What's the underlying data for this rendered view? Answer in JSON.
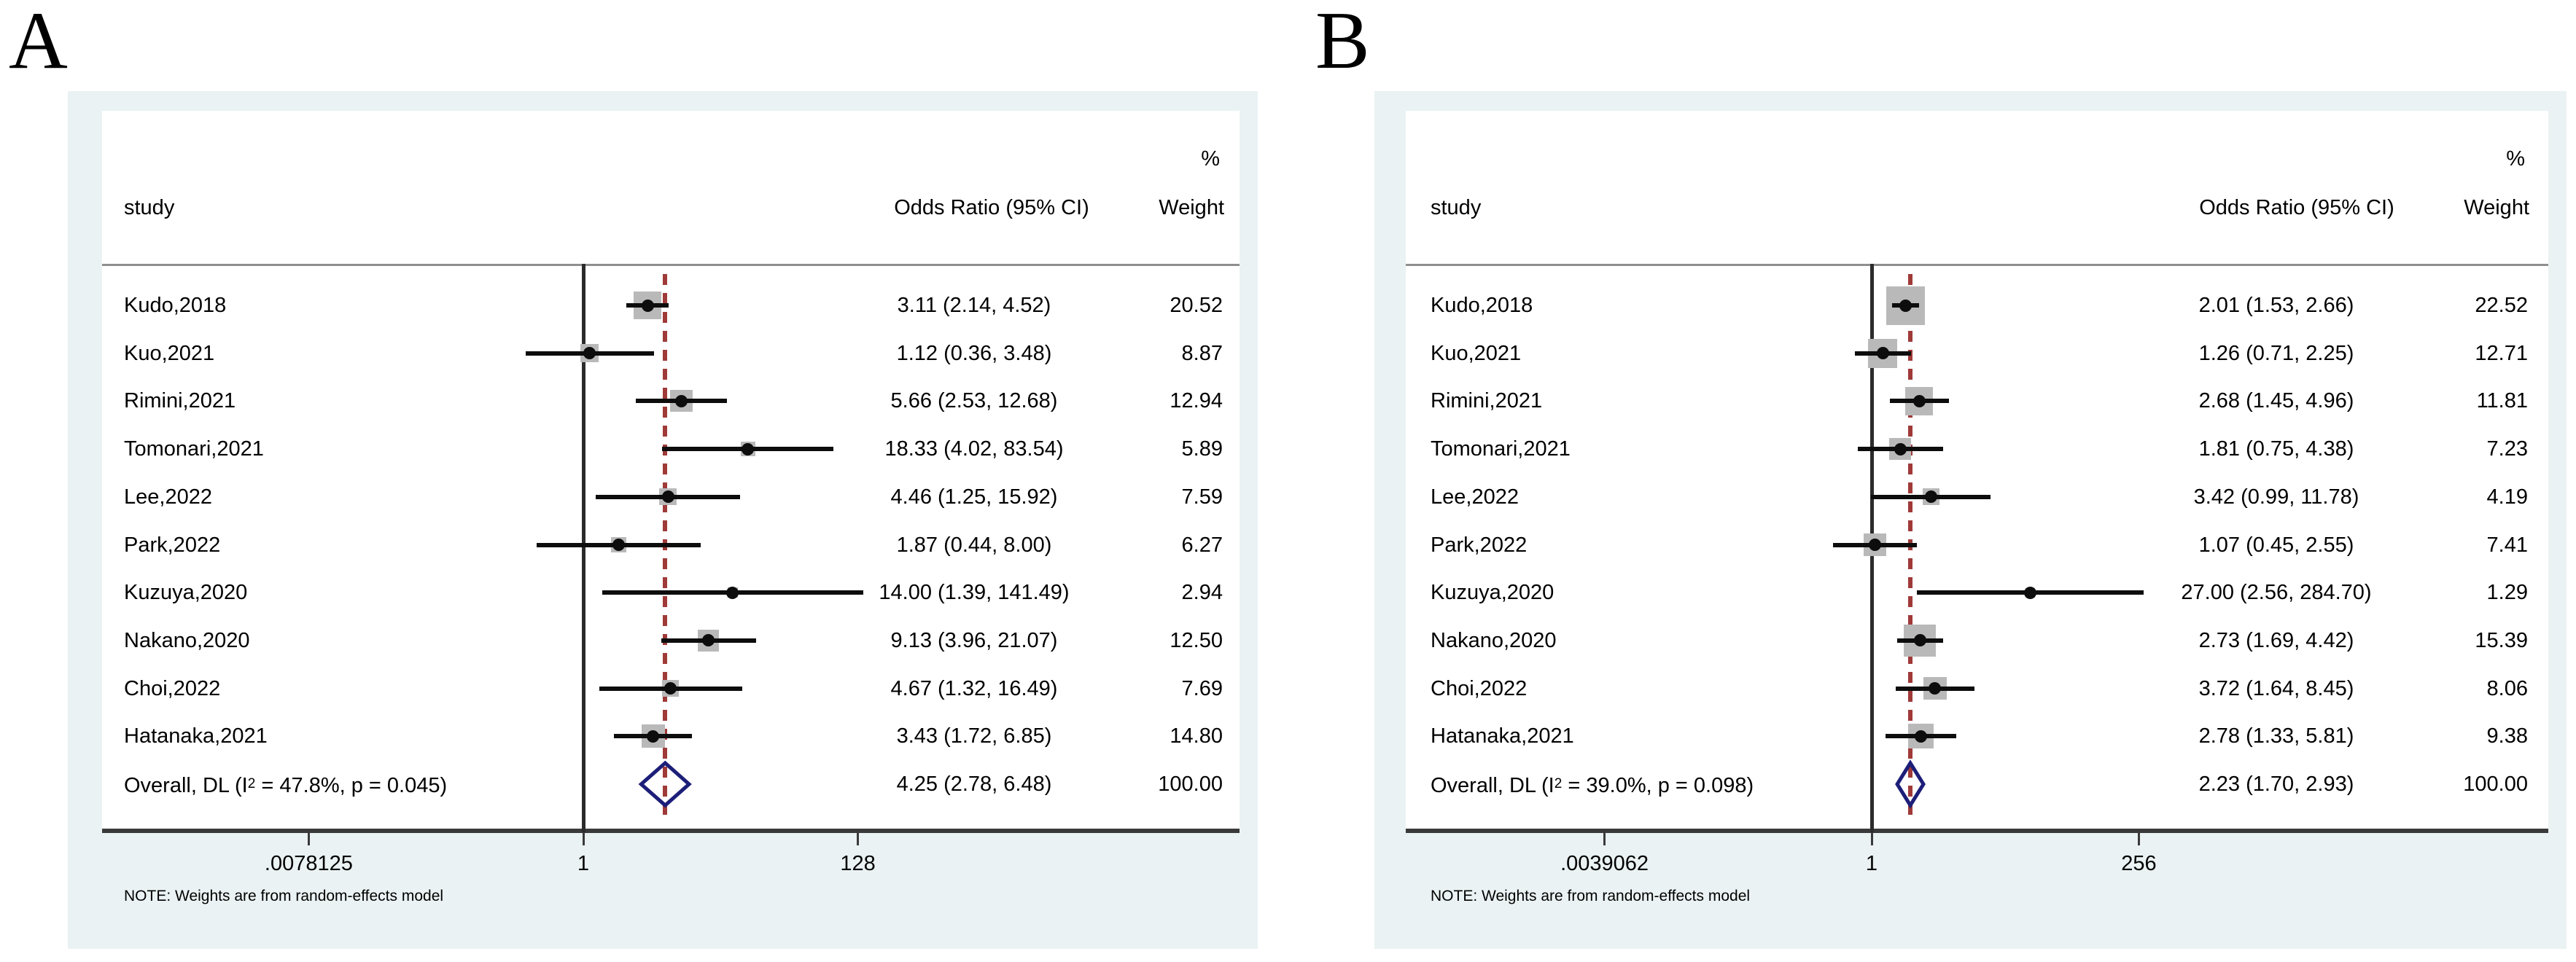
{
  "colors": {
    "card_bg": "#eaf2f3",
    "plot_bg": "#ffffff",
    "text": "#000000",
    "axis_line": "#3a3a3a",
    "null_line": "#2b2b2b",
    "header_rule": "#8f8f8f",
    "ci_line": "#0d0d0d",
    "square": "#b9b9b9",
    "point": "#0d0d0d",
    "dashed_line": "#9f3a38",
    "diamond": "#1c1e78"
  },
  "chart_data": [
    {
      "type": "forest",
      "panel_label": "A",
      "x_scale": "log2",
      "null_value": 1,
      "columns": {
        "percent": "%",
        "study": "study",
        "or_ci": "Odds Ratio (95% CI)",
        "weight": "Weight"
      },
      "x_ticks": [
        {
          "label": ".0078125",
          "value": 0.0078125
        },
        {
          "label": "1",
          "value": 1
        },
        {
          "label": "128",
          "value": 128
        }
      ],
      "studies": [
        {
          "study": "Kudo,2018",
          "or": 3.11,
          "lo": 2.14,
          "hi": 4.52,
          "or_ci_text": "3.11 (2.14, 4.52)",
          "weight": 20.52,
          "weight_text": "20.52"
        },
        {
          "study": "Kuo,2021",
          "or": 1.12,
          "lo": 0.36,
          "hi": 3.48,
          "or_ci_text": "1.12 (0.36, 3.48)",
          "weight": 8.87,
          "weight_text": "8.87"
        },
        {
          "study": "Rimini,2021",
          "or": 5.66,
          "lo": 2.53,
          "hi": 12.68,
          "or_ci_text": "5.66 (2.53, 12.68)",
          "weight": 12.94,
          "weight_text": "12.94"
        },
        {
          "study": "Tomonari,2021",
          "or": 18.33,
          "lo": 4.02,
          "hi": 83.54,
          "or_ci_text": "18.33 (4.02, 83.54)",
          "weight": 5.89,
          "weight_text": "5.89"
        },
        {
          "study": "Lee,2022",
          "or": 4.46,
          "lo": 1.25,
          "hi": 15.92,
          "or_ci_text": "4.46 (1.25, 15.92)",
          "weight": 7.59,
          "weight_text": "7.59"
        },
        {
          "study": "Park,2022",
          "or": 1.87,
          "lo": 0.44,
          "hi": 8.0,
          "or_ci_text": "1.87 (0.44, 8.00)",
          "weight": 6.27,
          "weight_text": "6.27"
        },
        {
          "study": "Kuzuya,2020",
          "or": 14.0,
          "lo": 1.39,
          "hi": 141.49,
          "or_ci_text": "14.00 (1.39, 141.49)",
          "weight": 2.94,
          "weight_text": "2.94"
        },
        {
          "study": "Nakano,2020",
          "or": 9.13,
          "lo": 3.96,
          "hi": 21.07,
          "or_ci_text": "9.13 (3.96, 21.07)",
          "weight": 12.5,
          "weight_text": "12.50"
        },
        {
          "study": "Choi,2022",
          "or": 4.67,
          "lo": 1.32,
          "hi": 16.49,
          "or_ci_text": "4.67 (1.32, 16.49)",
          "weight": 7.69,
          "weight_text": "7.69"
        },
        {
          "study": "Hatanaka,2021",
          "or": 3.43,
          "lo": 1.72,
          "hi": 6.85,
          "or_ci_text": "3.43 (1.72, 6.85)",
          "weight": 14.8,
          "weight_text": "14.80"
        }
      ],
      "overall": {
        "label_pre": "Overall, DL (I",
        "label_sup": "2",
        "label_post": " = 47.8%, p = 0.045)",
        "or": 4.25,
        "lo": 2.78,
        "hi": 6.48,
        "or_ci_text": "4.25 (2.78, 6.48)",
        "weight_text": "100.00"
      },
      "note": "NOTE: Weights are from random-effects model"
    },
    {
      "type": "forest",
      "panel_label": "B",
      "x_scale": "log2",
      "null_value": 1,
      "columns": {
        "percent": "%",
        "study": "study",
        "or_ci": "Odds Ratio (95% CI)",
        "weight": "Weight"
      },
      "x_ticks": [
        {
          "label": ".0039062",
          "value": 0.0039062
        },
        {
          "label": "1",
          "value": 1
        },
        {
          "label": "256",
          "value": 256
        }
      ],
      "studies": [
        {
          "study": "Kudo,2018",
          "or": 2.01,
          "lo": 1.53,
          "hi": 2.66,
          "or_ci_text": "2.01 (1.53, 2.66)",
          "weight": 22.52,
          "weight_text": "22.52"
        },
        {
          "study": "Kuo,2021",
          "or": 1.26,
          "lo": 0.71,
          "hi": 2.25,
          "or_ci_text": "1.26 (0.71, 2.25)",
          "weight": 12.71,
          "weight_text": "12.71"
        },
        {
          "study": "Rimini,2021",
          "or": 2.68,
          "lo": 1.45,
          "hi": 4.96,
          "or_ci_text": "2.68 (1.45, 4.96)",
          "weight": 11.81,
          "weight_text": "11.81"
        },
        {
          "study": "Tomonari,2021",
          "or": 1.81,
          "lo": 0.75,
          "hi": 4.38,
          "or_ci_text": "1.81 (0.75, 4.38)",
          "weight": 7.23,
          "weight_text": "7.23"
        },
        {
          "study": "Lee,2022",
          "or": 3.42,
          "lo": 0.99,
          "hi": 11.78,
          "or_ci_text": "3.42 (0.99, 11.78)",
          "weight": 4.19,
          "weight_text": "4.19"
        },
        {
          "study": "Park,2022",
          "or": 1.07,
          "lo": 0.45,
          "hi": 2.55,
          "or_ci_text": "1.07 (0.45, 2.55)",
          "weight": 7.41,
          "weight_text": "7.41"
        },
        {
          "study": "Kuzuya,2020",
          "or": 27.0,
          "lo": 2.56,
          "hi": 284.7,
          "or_ci_text": "27.00 (2.56, 284.70)",
          "weight": 1.29,
          "weight_text": "1.29"
        },
        {
          "study": "Nakano,2020",
          "or": 2.73,
          "lo": 1.69,
          "hi": 4.42,
          "or_ci_text": "2.73 (1.69, 4.42)",
          "weight": 15.39,
          "weight_text": "15.39"
        },
        {
          "study": "Choi,2022",
          "or": 3.72,
          "lo": 1.64,
          "hi": 8.45,
          "or_ci_text": "3.72 (1.64, 8.45)",
          "weight": 8.06,
          "weight_text": "8.06"
        },
        {
          "study": "Hatanaka,2021",
          "or": 2.78,
          "lo": 1.33,
          "hi": 5.81,
          "or_ci_text": "2.78 (1.33, 5.81)",
          "weight": 9.38,
          "weight_text": "9.38"
        }
      ],
      "overall": {
        "label_pre": "Overall, DL (I",
        "label_sup": "2",
        "label_post": " = 39.0%, p = 0.098)",
        "or": 2.23,
        "lo": 1.7,
        "hi": 2.93,
        "or_ci_text": "2.23 (1.70, 2.93)",
        "weight_text": "100.00"
      },
      "note": "NOTE: Weights are from random-effects model"
    }
  ]
}
